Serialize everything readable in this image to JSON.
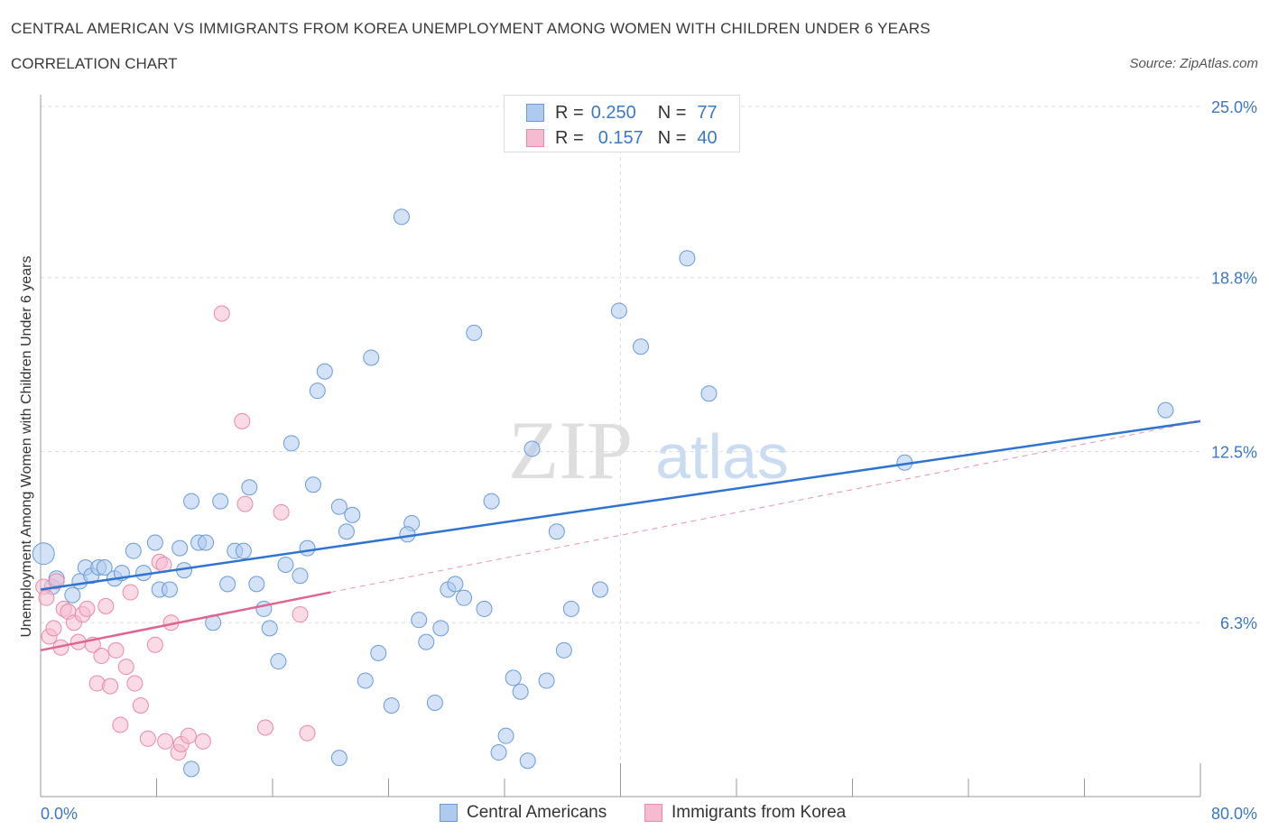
{
  "header": {
    "title": "CENTRAL AMERICAN VS IMMIGRANTS FROM KOREA UNEMPLOYMENT AMONG WOMEN WITH CHILDREN UNDER 6 YEARS",
    "subtitle": "CORRELATION CHART",
    "source": "Source: ZipAtlas.com"
  },
  "legend": {
    "rows": [
      {
        "r_label": "R =",
        "r_value": "0.250",
        "n_label": "N =",
        "n_value": "77"
      },
      {
        "r_label": "R =",
        "r_value": "0.157",
        "n_label": "N =",
        "n_value": "40"
      }
    ]
  },
  "bottom_legend": {
    "series1": "Central Americans",
    "series2": "Immigrants from Korea"
  },
  "watermark": {
    "zip": "ZIP",
    "atlas": "atlas"
  },
  "colors": {
    "blue_fill": "#aecbef",
    "blue_stroke": "#6a9bd8",
    "blue_line": "#2f74d0",
    "pink_fill": "#f5bcd0",
    "pink_stroke": "#e88aa8",
    "pink_line": "#e0658e",
    "axis_text": "#3a78c8",
    "grid": "#dddddd"
  },
  "chart_data": {
    "type": "scatter",
    "title": "CENTRAL AMERICAN VS IMMIGRANTS FROM KOREA UNEMPLOYMENT AMONG WOMEN WITH CHILDREN UNDER 6 YEARS",
    "xlabel": "",
    "ylabel": "Unemployment Among Women with Children Under 6 years",
    "xlim": [
      0,
      80
    ],
    "ylim": [
      0,
      25
    ],
    "x_tick_labels": [
      "0.0%",
      "80.0%"
    ],
    "y_ticks": [
      6.3,
      12.5,
      18.8,
      25.0
    ],
    "y_tick_labels": [
      "6.3%",
      "12.5%",
      "18.8%",
      "25.0%"
    ],
    "grid": true,
    "series": [
      {
        "name": "Central Americans",
        "R": 0.25,
        "N": 77,
        "trend": {
          "x0": 0,
          "y0": 7.5,
          "x1": 80,
          "y1": 13.6
        },
        "points": [
          [
            0.2,
            8.8
          ],
          [
            0.8,
            7.6
          ],
          [
            1.1,
            7.9
          ],
          [
            2.2,
            7.3
          ],
          [
            2.7,
            7.8
          ],
          [
            3.1,
            8.3
          ],
          [
            3.5,
            8.0
          ],
          [
            4.0,
            8.3
          ],
          [
            4.4,
            8.3
          ],
          [
            5.1,
            7.9
          ],
          [
            5.6,
            8.1
          ],
          [
            6.4,
            8.9
          ],
          [
            7.1,
            8.1
          ],
          [
            7.9,
            9.2
          ],
          [
            8.2,
            7.5
          ],
          [
            8.9,
            7.5
          ],
          [
            9.6,
            9.0
          ],
          [
            9.9,
            8.2
          ],
          [
            10.4,
            10.7
          ],
          [
            10.9,
            9.2
          ],
          [
            11.4,
            9.2
          ],
          [
            11.9,
            6.3
          ],
          [
            12.4,
            10.7
          ],
          [
            12.9,
            7.7
          ],
          [
            13.4,
            8.9
          ],
          [
            14.0,
            8.9
          ],
          [
            14.4,
            11.2
          ],
          [
            14.9,
            7.7
          ],
          [
            15.4,
            6.8
          ],
          [
            15.8,
            6.1
          ],
          [
            16.4,
            4.9
          ],
          [
            16.9,
            8.4
          ],
          [
            17.3,
            12.8
          ],
          [
            17.9,
            8.0
          ],
          [
            18.4,
            9.0
          ],
          [
            18.8,
            11.3
          ],
          [
            19.1,
            14.7
          ],
          [
            19.6,
            15.4
          ],
          [
            20.6,
            10.5
          ],
          [
            21.1,
            9.6
          ],
          [
            21.5,
            10.2
          ],
          [
            22.4,
            4.2
          ],
          [
            22.8,
            15.9
          ],
          [
            23.3,
            5.2
          ],
          [
            24.2,
            3.3
          ],
          [
            24.9,
            21.0
          ],
          [
            25.6,
            9.9
          ],
          [
            26.1,
            6.4
          ],
          [
            26.6,
            5.6
          ],
          [
            27.2,
            3.4
          ],
          [
            27.6,
            6.1
          ],
          [
            28.1,
            7.5
          ],
          [
            28.6,
            7.7
          ],
          [
            29.2,
            7.2
          ],
          [
            29.9,
            16.8
          ],
          [
            30.6,
            6.8
          ],
          [
            31.1,
            10.7
          ],
          [
            31.6,
            1.6
          ],
          [
            32.1,
            2.2
          ],
          [
            32.6,
            4.3
          ],
          [
            33.1,
            3.8
          ],
          [
            33.6,
            1.3
          ],
          [
            33.9,
            12.6
          ],
          [
            34.9,
            4.2
          ],
          [
            35.6,
            9.6
          ],
          [
            36.6,
            6.8
          ],
          [
            38.6,
            7.5
          ],
          [
            39.9,
            17.6
          ],
          [
            41.4,
            16.3
          ],
          [
            44.6,
            19.5
          ],
          [
            46.1,
            14.6
          ],
          [
            59.6,
            12.1
          ],
          [
            77.6,
            14.0
          ],
          [
            10.4,
            1.0
          ],
          [
            20.6,
            1.4
          ],
          [
            25.3,
            9.5
          ],
          [
            36.1,
            5.3
          ]
        ]
      },
      {
        "name": "Immigrants from Korea",
        "R": 0.157,
        "N": 40,
        "trend": {
          "x0": 0,
          "y0": 5.3,
          "x1": 20,
          "y1": 7.4,
          "dashed_to": {
            "x": 80,
            "y": 13.6
          }
        },
        "points": [
          [
            0.2,
            7.6
          ],
          [
            0.4,
            7.2
          ],
          [
            0.6,
            5.8
          ],
          [
            0.9,
            6.1
          ],
          [
            1.1,
            7.8
          ],
          [
            1.4,
            5.4
          ],
          [
            1.6,
            6.8
          ],
          [
            1.9,
            6.7
          ],
          [
            2.3,
            6.3
          ],
          [
            2.6,
            5.6
          ],
          [
            2.9,
            6.6
          ],
          [
            3.2,
            6.8
          ],
          [
            3.6,
            5.5
          ],
          [
            3.9,
            4.1
          ],
          [
            4.2,
            5.1
          ],
          [
            4.5,
            6.9
          ],
          [
            4.8,
            4.0
          ],
          [
            5.2,
            5.3
          ],
          [
            5.5,
            2.6
          ],
          [
            5.9,
            4.7
          ],
          [
            6.2,
            7.4
          ],
          [
            6.5,
            4.1
          ],
          [
            6.9,
            3.3
          ],
          [
            7.4,
            2.1
          ],
          [
            7.9,
            5.5
          ],
          [
            8.2,
            8.5
          ],
          [
            8.6,
            2.0
          ],
          [
            9.0,
            6.3
          ],
          [
            9.5,
            1.6
          ],
          [
            9.7,
            1.9
          ],
          [
            10.2,
            2.2
          ],
          [
            11.2,
            2.0
          ],
          [
            12.5,
            17.5
          ],
          [
            13.9,
            13.6
          ],
          [
            14.1,
            10.6
          ],
          [
            15.5,
            2.5
          ],
          [
            16.6,
            10.3
          ],
          [
            17.9,
            6.6
          ],
          [
            18.4,
            2.3
          ],
          [
            8.5,
            8.4
          ]
        ]
      }
    ]
  }
}
